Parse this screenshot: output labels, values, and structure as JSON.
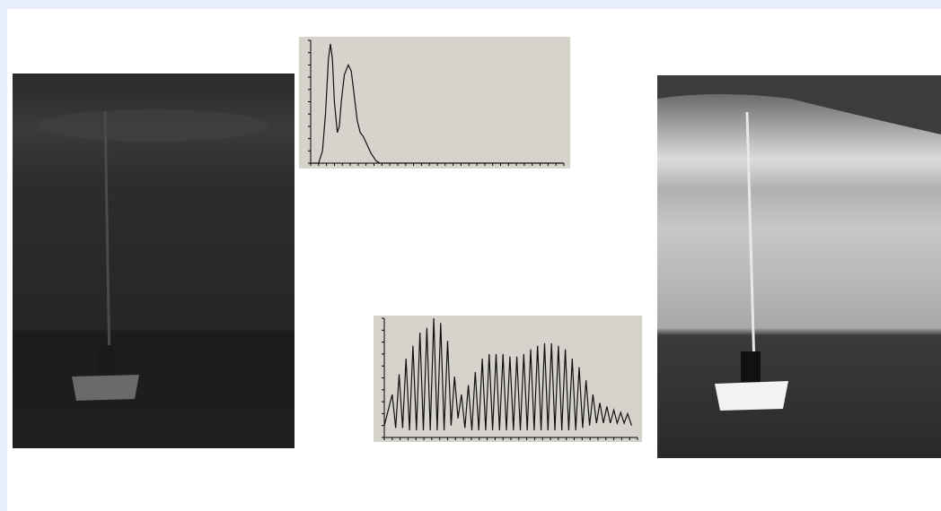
{
  "chart_data": [
    {
      "type": "line",
      "color": "#111111",
      "x": [
        0,
        8,
        12,
        15,
        18,
        20,
        22,
        24,
        27,
        29,
        31,
        34,
        38,
        41,
        44,
        47,
        50,
        53,
        57,
        61,
        66,
        70,
        256
      ],
      "values": [
        0,
        0,
        10,
        40,
        85,
        97,
        85,
        50,
        25,
        30,
        50,
        72,
        80,
        75,
        55,
        35,
        25,
        22,
        15,
        8,
        2,
        0,
        0
      ],
      "xlim": [
        0,
        256
      ],
      "ylim": [
        0,
        100
      ],
      "xticks": [
        0,
        8,
        16,
        24,
        32,
        40,
        48,
        56,
        64,
        72,
        80,
        88,
        96,
        104,
        112,
        120,
        128,
        136,
        144,
        152,
        160,
        168,
        176,
        184,
        192,
        200,
        208,
        216,
        224,
        232,
        240,
        248,
        256
      ],
      "yticks": [
        0,
        10,
        20,
        30,
        40,
        50,
        60,
        70,
        80,
        90,
        100
      ]
    },
    {
      "type": "line",
      "color": "#111111",
      "x": [
        0,
        8,
        11.5,
        15,
        18.5,
        22,
        25.5,
        29,
        32.5,
        36,
        39.5,
        43,
        46.5,
        50,
        53.5,
        57,
        60.5,
        64,
        67.5,
        71,
        74.5,
        78,
        81.5,
        85,
        88.5,
        92,
        95.5,
        99,
        102.5,
        106,
        109.5,
        113,
        116.5,
        120,
        123.5,
        127,
        130.5,
        134,
        137.5,
        141,
        144.5,
        148,
        151.5,
        155,
        158.5,
        162,
        165.5,
        169,
        172.5,
        176,
        179.5,
        183,
        186.5,
        190,
        193.5,
        197,
        200.5,
        204,
        207.5,
        211,
        214.5,
        218,
        221.5,
        225,
        228.5,
        232,
        235.5,
        239,
        242.5,
        246,
        250
      ],
      "values": [
        10,
        36,
        8,
        53,
        8,
        66,
        6,
        77,
        6,
        88,
        6,
        92,
        6,
        100,
        6,
        96,
        6,
        81,
        10,
        51,
        16,
        36,
        8,
        44,
        6,
        55,
        6,
        66,
        6,
        70,
        6,
        70,
        6,
        70,
        6,
        68,
        6,
        68,
        6,
        70,
        6,
        74,
        6,
        77,
        6,
        79,
        6,
        79,
        6,
        77,
        6,
        74,
        6,
        66,
        6,
        59,
        8,
        48,
        10,
        36,
        12,
        29,
        12,
        26,
        12,
        23,
        12,
        21,
        12,
        20,
        10
      ],
      "xlim": [
        0,
        256
      ],
      "ylim": [
        0,
        100
      ],
      "xticks": [
        0,
        8,
        16,
        24,
        32,
        40,
        48,
        56,
        64,
        72,
        80,
        88,
        96,
        104,
        112,
        120,
        128,
        136,
        144,
        152,
        160,
        168,
        176,
        184,
        192,
        200,
        208,
        216,
        224,
        232,
        240,
        248,
        256
      ],
      "yticks": [
        0,
        10,
        20,
        30,
        40,
        50,
        60,
        70,
        80,
        90,
        100
      ]
    }
  ]
}
